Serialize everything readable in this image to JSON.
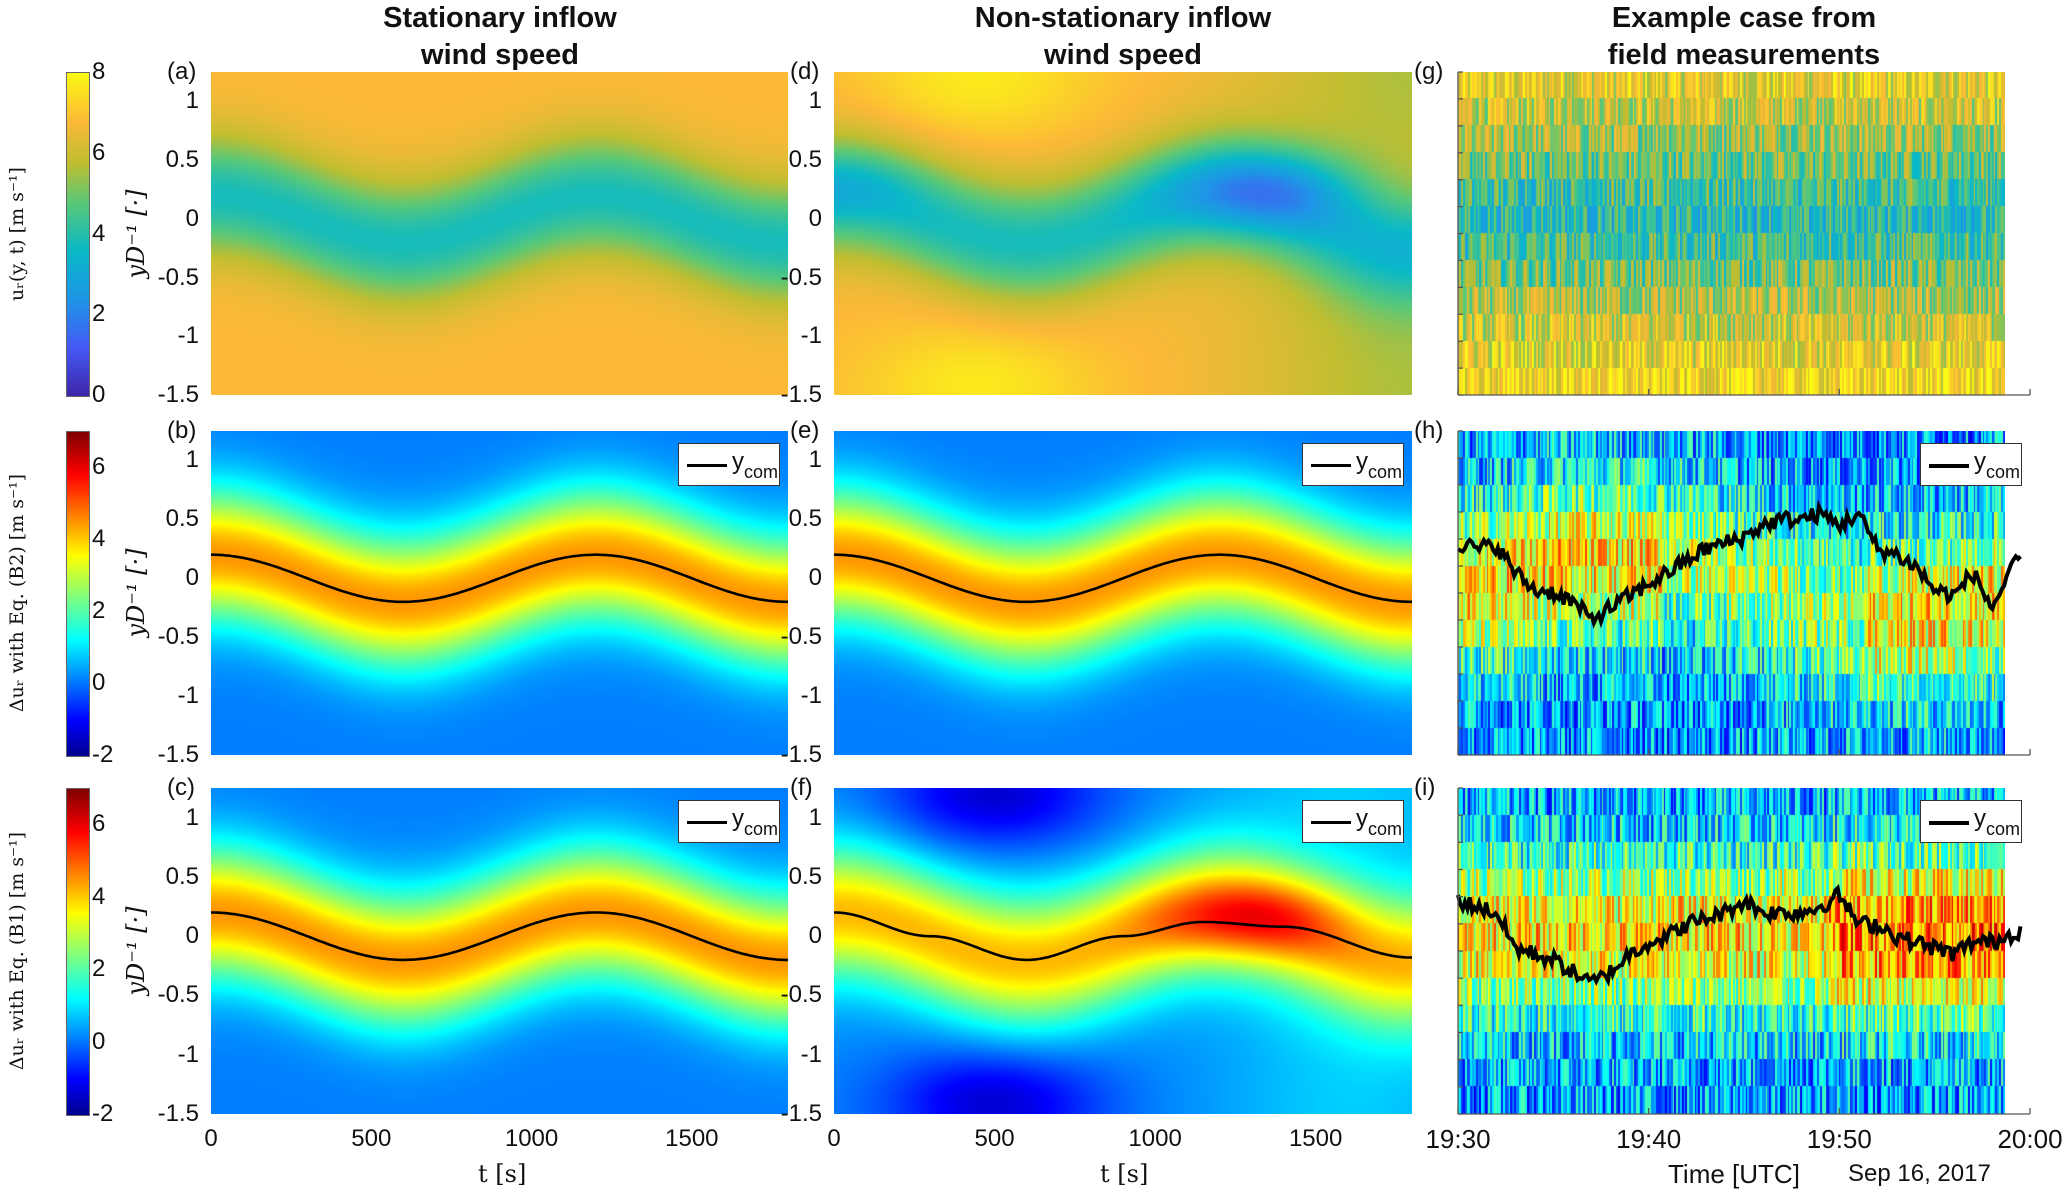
{
  "column_titles": [
    {
      "line1": "Stationary inflow",
      "line2": "wind speed"
    },
    {
      "line1": "Non-stationary inflow",
      "line2": "wind speed"
    },
    {
      "line1": "Example case from",
      "line2": "field measurements"
    }
  ],
  "colorbars": [
    {
      "label": "uᵣ(y, t) [m s⁻¹]",
      "colormap": "parula",
      "range": [
        0,
        8
      ],
      "ticks": [
        "0",
        "2",
        "4",
        "6",
        "8"
      ]
    },
    {
      "label": "Δuᵣ with Eq. (B2) [m s⁻¹]",
      "colormap": "jet",
      "range": [
        -2,
        7
      ],
      "ticks": [
        "-2",
        "0",
        "2",
        "4",
        "6"
      ]
    },
    {
      "label": "Δuᵣ with Eq. (B1) [m s⁻¹]",
      "colormap": "jet",
      "range": [
        -2,
        7
      ],
      "ticks": [
        "-2",
        "0",
        "2",
        "4",
        "6"
      ]
    }
  ],
  "y_axis": {
    "label": "yD⁻¹ [·]",
    "ticks": [
      "1",
      "0.5",
      "0",
      "-0.5",
      "-1",
      "-1.5"
    ],
    "range": [
      -1.5,
      1.25
    ]
  },
  "x_axis_sim": {
    "label": "t [s]",
    "ticks": [
      "0",
      "500",
      "1000",
      "1500"
    ],
    "range": [
      0,
      1800
    ]
  },
  "x_axis_field": {
    "label": "Time [UTC]",
    "date": "Sep 16, 2017",
    "ticks": [
      "19:30",
      "19:40",
      "19:50",
      "20:00"
    ],
    "range_minutes": [
      0,
      30
    ]
  },
  "legend": {
    "label": "y",
    "sub": "com"
  },
  "chart_data": [
    {
      "id": "a",
      "letter": "(a)",
      "type": "heatmap",
      "field": "stationary_u",
      "ycom": null
    },
    {
      "id": "b",
      "letter": "(b)",
      "type": "heatmap",
      "field": "stationary_du_B2",
      "ycom": {
        "amplitude": 0.2,
        "period_s": 1200
      }
    },
    {
      "id": "c",
      "letter": "(c)",
      "type": "heatmap",
      "field": "stationary_du_B1",
      "ycom": {
        "amplitude": 0.2,
        "period_s": 1200
      }
    },
    {
      "id": "d",
      "letter": "(d)",
      "type": "heatmap",
      "field": "nonstationary_u",
      "ycom": null
    },
    {
      "id": "e",
      "letter": "(e)",
      "type": "heatmap",
      "field": "nonstationary_du_B2",
      "ycom": {
        "amplitude": 0.2,
        "period_s": 1200
      }
    },
    {
      "id": "f",
      "letter": "(f)",
      "type": "heatmap",
      "field": "nonstationary_du_B1",
      "ycom_points": {
        "t": [
          0,
          300,
          600,
          900,
          1150,
          1400,
          1800
        ],
        "y": [
          0.2,
          0.0,
          -0.2,
          0.0,
          0.12,
          0.08,
          -0.18
        ]
      }
    },
    {
      "id": "g",
      "letter": "(g)",
      "type": "heatmap",
      "field": "field_u",
      "ycom": null
    },
    {
      "id": "h",
      "letter": "(h)",
      "type": "heatmap",
      "field": "field_du_B2",
      "ycom_series": {
        "minutes": [
          0,
          1,
          2,
          3,
          4,
          5,
          6,
          7,
          8,
          9,
          10,
          11,
          12,
          13,
          14,
          15,
          16,
          17,
          18,
          19,
          20,
          21,
          22,
          23,
          24,
          25,
          26,
          27,
          28,
          29.5
        ],
        "y": [
          0.3,
          0.25,
          0.28,
          0.05,
          -0.1,
          -0.12,
          -0.2,
          -0.35,
          -0.25,
          -0.15,
          -0.05,
          0.05,
          0.15,
          0.25,
          0.3,
          0.35,
          0.45,
          0.5,
          0.5,
          0.55,
          0.45,
          0.55,
          0.25,
          0.2,
          0.1,
          -0.1,
          -0.15,
          0.05,
          -0.25,
          0.2
        ]
      }
    },
    {
      "id": "i",
      "letter": "(i)",
      "type": "heatmap",
      "field": "field_du_B1",
      "ycom_series": {
        "minutes": [
          0,
          1,
          2,
          3,
          4,
          5,
          6,
          7,
          8,
          9,
          10,
          11,
          12,
          13,
          14,
          15,
          16,
          17,
          18,
          19,
          20,
          21,
          22,
          23,
          24,
          25,
          26,
          27,
          28,
          29.5
        ],
        "y": [
          0.3,
          0.25,
          0.2,
          -0.1,
          -0.15,
          -0.2,
          -0.3,
          -0.4,
          -0.3,
          -0.15,
          -0.05,
          0.0,
          0.1,
          0.15,
          0.2,
          0.3,
          0.2,
          0.2,
          0.2,
          0.25,
          0.35,
          0.1,
          0.1,
          0.0,
          -0.05,
          -0.1,
          -0.15,
          -0.05,
          -0.05,
          0.05
        ]
      }
    }
  ]
}
